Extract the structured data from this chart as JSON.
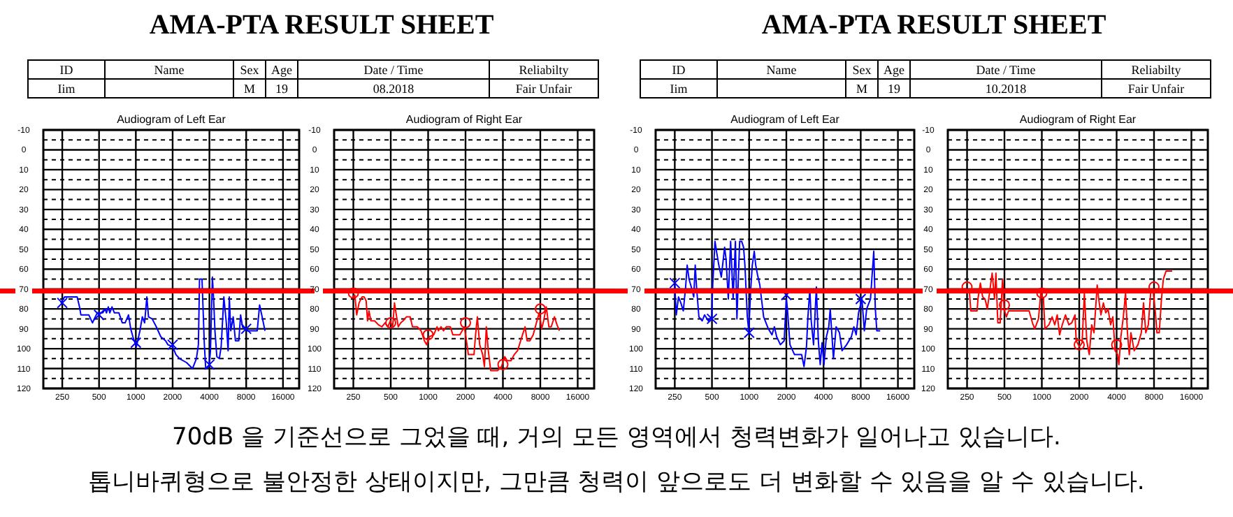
{
  "chart_data": [
    {
      "type": "other",
      "title": "AMA-PTA RESULT SHEET",
      "annotations": [
        "ID",
        "Name",
        "Sex",
        "Age",
        "Date / Time",
        "Reliabilty",
        "Iim",
        null,
        "M",
        "19",
        "08.2018",
        "Fair Unfair"
      ]
    },
    {
      "type": "line",
      "title": "Audiogram of Left Ear",
      "log": "x",
      "grid": true,
      "xlim": [
        175,
        21700
      ],
      "ylim": [
        120,
        -10
      ],
      "xticks": [
        250,
        500,
        1000,
        2000,
        4000,
        8000,
        16000
      ],
      "yticks": [
        -10,
        0,
        10,
        20,
        30,
        40,
        50,
        60,
        70,
        80,
        90,
        100,
        110,
        120
      ],
      "ref_lines": [
        {
          "axis": "y",
          "value": 71,
          "color": "#ff0000"
        }
      ],
      "series": [
        {
          "color": "#0000ff",
          "x": [
            243,
            261,
            331,
            346,
            355,
            412,
            442,
            457,
            483,
            500,
            536,
            561,
            575,
            595,
            612,
            638,
            668,
            727,
            775,
            817,
            871,
            908,
            946,
            1010,
            1080,
            1130,
            1180,
            1230,
            1270,
            1360,
            1470,
            1600,
            1750,
            1830,
            2000,
            2130,
            2280,
            2600,
            2910,
            3130,
            3250,
            3320,
            3480,
            3630,
            3730,
            3970,
            4080,
            4230,
            4330,
            4440,
            4600,
            4820,
            4990,
            5250,
            5500,
            5690,
            5820,
            5980,
            6260,
            6530,
            6960,
            7200,
            7460,
            8150,
            8870,
            9850,
            10300,
            10800,
            11400
          ],
          "values": [
            77,
            74,
            74,
            79,
            83,
            83,
            87,
            85,
            82,
            82,
            82,
            80,
            82,
            79,
            82,
            79,
            82,
            82,
            87,
            87,
            83,
            90,
            94,
            99,
            91,
            84,
            87,
            74,
            84,
            85,
            89,
            94,
            96,
            98,
            99,
            103,
            105,
            107,
            110,
            105,
            98,
            65,
            65,
            97,
            110,
            109,
            101,
            64,
            75,
            91,
            104,
            105,
            99,
            74,
            87,
            101,
            74,
            91,
            84,
            96,
            96,
            83,
            89,
            91,
            91,
            91,
            78,
            84,
            91
          ]
        },
        {
          "type": "scatter",
          "marker": "cross",
          "color": "#0000ff",
          "x": [
            250,
            500,
            1000,
            2000,
            4000,
            8000
          ],
          "values": [
            77,
            83,
            97,
            98,
            108,
            90
          ]
        }
      ]
    },
    {
      "type": "line",
      "title": "Audiogram of Right Ear",
      "log": "x",
      "grid": true,
      "xlim": [
        175,
        21700
      ],
      "ylim": [
        120,
        -10
      ],
      "xticks": [
        250,
        500,
        1000,
        2000,
        4000,
        8000,
        16000
      ],
      "yticks": [
        -10,
        0,
        10,
        20,
        30,
        40,
        50,
        60,
        70,
        80,
        90,
        100,
        110,
        120
      ],
      "ref_lines": [
        {
          "axis": "y",
          "value": 71,
          "color": "#ff0000"
        }
      ],
      "series": [
        {
          "color": "#ff0000",
          "x": [
            246,
            257,
            266,
            278,
            293,
            306,
            317,
            325,
            334,
            346,
            371,
            398,
            424,
            450,
            474,
            496,
            518,
            536,
            551,
            575,
            602,
            628,
            668,
            717,
            748,
            817,
            877,
            933,
            973,
            1020,
            1110,
            1180,
            1210,
            1270,
            1330,
            1400,
            1510,
            1580,
            1800,
            1960,
            2110,
            2340,
            2410,
            2490,
            2600,
            2750,
            2840,
            2940,
            3050,
            3190,
            3630,
            3890,
            4140,
            4330,
            4650,
            4930,
            5250,
            5620,
            6030,
            6260,
            6600,
            7010,
            7520,
            7840,
            8210,
            8510,
            8940,
            9380,
            9790,
            10400,
            10900,
            11400
          ],
          "values": [
            74,
            73,
            83,
            77,
            74,
            74,
            76,
            86,
            81,
            86,
            86,
            88,
            89,
            87,
            89,
            86,
            89,
            77,
            82,
            89,
            87,
            86,
            84,
            84,
            89,
            89,
            91,
            96,
            98,
            94,
            93,
            89,
            91,
            89,
            91,
            89,
            89,
            93,
            93,
            89,
            103,
            103,
            93,
            84,
            98,
            103,
            109,
            89,
            101,
            111,
            111,
            109,
            104,
            106,
            106,
            103,
            101,
            95,
            89,
            96,
            96,
            93,
            86,
            82,
            90,
            86,
            79,
            89,
            89,
            84,
            88,
            91
          ]
        },
        {
          "type": "scatter",
          "marker": "circle",
          "color": "#ff0000",
          "x": [
            250,
            500,
            1000,
            2000,
            4000,
            8000
          ],
          "values": [
            72,
            87,
            93,
            87,
            108,
            80
          ]
        }
      ]
    },
    {
      "type": "other",
      "title": "AMA-PTA RESULT SHEET",
      "annotations": [
        "ID",
        "Name",
        "Sex",
        "Age",
        "Date / Time",
        "Reliabilty",
        "Iim",
        null,
        "M",
        "19",
        "10.2018",
        "Fair Unfair"
      ]
    },
    {
      "type": "line",
      "title": "Audiogram of Left Ear",
      "log": "x",
      "grid": true,
      "xlim": [
        175,
        21700
      ],
      "ylim": [
        120,
        -10
      ],
      "xticks": [
        250,
        500,
        1000,
        2000,
        4000,
        8000,
        16000
      ],
      "yticks": [
        -10,
        0,
        10,
        20,
        30,
        40,
        50,
        60,
        70,
        80,
        90,
        100,
        110,
        120
      ],
      "ref_lines": [
        {
          "axis": "y",
          "value": 71,
          "color": "#ff0000"
        }
      ],
      "series": [
        {
          "color": "#0000ff",
          "x": [
            250,
            257,
            268,
            280,
            293,
            306,
            315,
            326,
            340,
            356,
            366,
            375,
            392,
            417,
            436,
            467,
            497,
            507,
            529,
            544,
            568,
            595,
            633,
            650,
            678,
            708,
            742,
            774,
            796,
            838,
            870,
            901,
            924,
            966,
            993,
            1030,
            1060,
            1100,
            1130,
            1170,
            1220,
            1310,
            1430,
            1530,
            1600,
            1670,
            1790,
            1920,
            2000,
            2040,
            2140,
            2330,
            2660,
            2780,
            2910,
            2990,
            3100,
            3180,
            3320,
            3500,
            3630,
            3760,
            3890,
            4030,
            4220,
            4410,
            4530,
            4810,
            5060,
            5380,
            5650,
            6150,
            6720,
            7040,
            7350,
            7680,
            8180,
            8560,
            8940,
            9600,
            9840,
            10200,
            10500,
            10800,
            11500
          ],
          "values": [
            68,
            83,
            74,
            77,
            81,
            69,
            58,
            65,
            69,
            74,
            58,
            69,
            84,
            86,
            83,
            86,
            84,
            68,
            46,
            51,
            58,
            64,
            49,
            55,
            75,
            46,
            75,
            46,
            85,
            46,
            46,
            49,
            58,
            84,
            91,
            70,
            58,
            51,
            58,
            63,
            68,
            84,
            90,
            93,
            89,
            94,
            98,
            96,
            75,
            80,
            98,
            103,
            103,
            109,
            99,
            84,
            70,
            86,
            98,
            69,
            96,
            108,
            97,
            108,
            94,
            89,
            80,
            105,
            89,
            92,
            101,
            98,
            94,
            89,
            93,
            82,
            75,
            91,
            80,
            75,
            65,
            51,
            80,
            91,
            91
          ]
        },
        {
          "type": "scatter",
          "marker": "cross",
          "color": "#0000ff",
          "x": [
            250,
            500,
            1000,
            2000,
            8000
          ],
          "values": [
            67,
            85,
            92,
            73,
            75
          ]
        }
      ]
    },
    {
      "type": "line",
      "title": "Audiogram of Right Ear",
      "log": "x",
      "grid": true,
      "xlim": [
        175,
        21700
      ],
      "ylim": [
        120,
        -10
      ],
      "xticks": [
        250,
        500,
        1000,
        2000,
        4000,
        8000,
        16000
      ],
      "yticks": [
        -10,
        0,
        10,
        20,
        30,
        40,
        50,
        60,
        70,
        80,
        90,
        100,
        110,
        120
      ],
      "ref_lines": [
        {
          "axis": "y",
          "value": 71,
          "color": "#ff0000"
        }
      ],
      "series": [
        {
          "color": "#ff0000",
          "x": [
            235,
            250,
            261,
            268,
            301,
            306,
            320,
            334,
            349,
            364,
            381,
            398,
            416,
            427,
            442,
            462,
            483,
            497,
            518,
            540,
            590,
            790,
            840,
            877,
            940,
            980,
            1030,
            1060,
            1140,
            1210,
            1270,
            1330,
            1390,
            1460,
            1550,
            1650,
            1740,
            1850,
            1890,
            2010,
            2110,
            2200,
            2300,
            2410,
            2520,
            2630,
            2790,
            2870,
            2990,
            3130,
            3270,
            3410,
            3580,
            3730,
            3890,
            4080,
            4170,
            4330,
            4530,
            4720,
            4890,
            5060,
            5210,
            5540,
            5940,
            6320,
            6590,
            6870,
            7200,
            7520,
            7840,
            8210,
            8450,
            8810,
            9190,
            9510,
            10000,
            11200
          ],
          "values": [
            70,
            70,
            71,
            81,
            81,
            75,
            67,
            74,
            75,
            80,
            71,
            62,
            75,
            62,
            87,
            87,
            65,
            80,
            84,
            81,
            81,
            81,
            87,
            90,
            85,
            72,
            75,
            90,
            88,
            84,
            88,
            83,
            93,
            88,
            83,
            88,
            87,
            83,
            96,
            99,
            97,
            72,
            96,
            103,
            88,
            92,
            68,
            75,
            83,
            77,
            82,
            80,
            88,
            84,
            101,
            103,
            108,
            94,
            84,
            72,
            92,
            103,
            92,
            101,
            98,
            92,
            77,
            92,
            88,
            72,
            70,
            82,
            92,
            92,
            75,
            65,
            61,
            61
          ]
        },
        {
          "type": "scatter",
          "marker": "circle",
          "color": "#ff0000",
          "x": [
            250,
            500,
            1000,
            2000,
            4000,
            8000
          ],
          "values": [
            69,
            78,
            72,
            98,
            98,
            69
          ]
        }
      ]
    },
    {
      "type": "other",
      "annotations": [
        "70dB 을 기준선으로 그었을 때, 거의 모든 영역에서 청력변화가 일어나고 있습니다.",
        "톱니바퀴형으로 불안정한 상태이지만, 그만큼 청력이 앞으로도 더 변화할 수 있음을 알 수 있습니다."
      ]
    }
  ]
}
